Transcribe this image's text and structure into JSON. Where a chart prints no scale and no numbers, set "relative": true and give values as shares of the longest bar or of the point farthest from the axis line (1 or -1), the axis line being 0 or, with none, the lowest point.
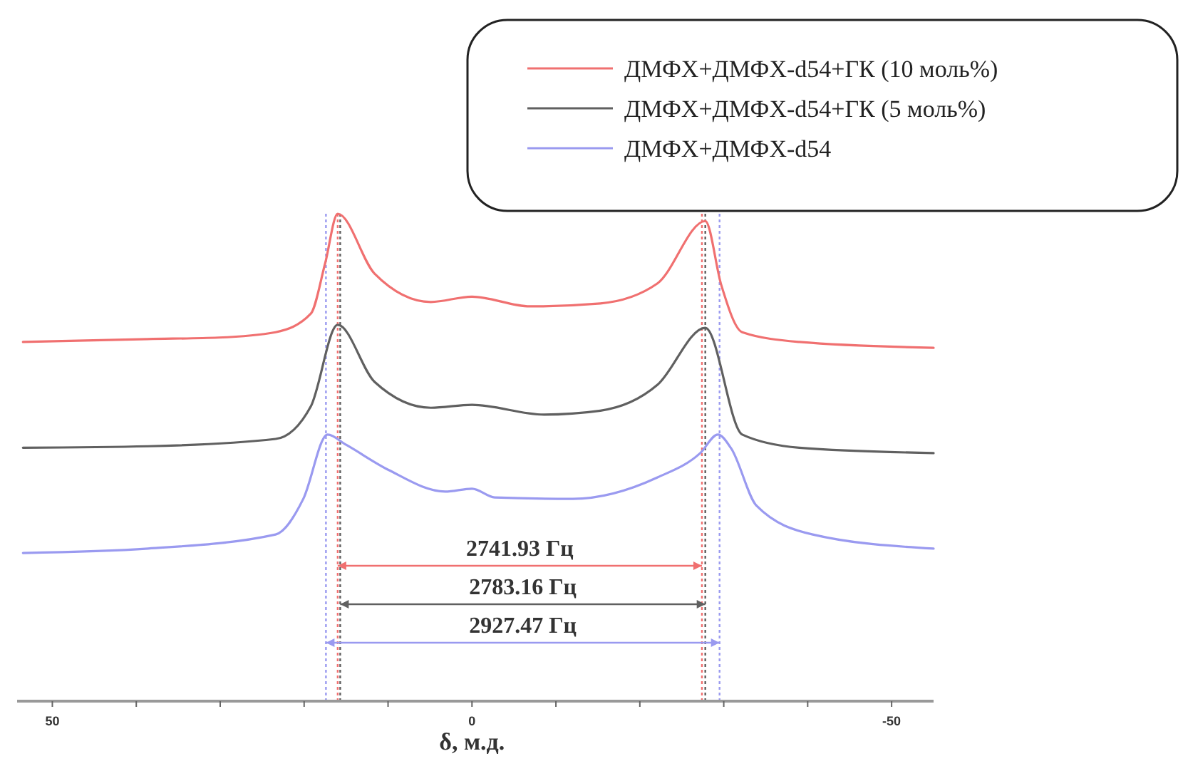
{
  "chart_data": {
    "type": "line",
    "relative": true,
    "xlabel": "δ, м.д.",
    "xlim": [
      54.2,
      -55
    ],
    "xticks": [
      50,
      {
        "value": 40,
        "label": null
      },
      {
        "value": 30,
        "label": null
      },
      {
        "value": 20,
        "label": null
      },
      {
        "value": 10,
        "label": null
      },
      0,
      {
        "value": -10,
        "label": null
      },
      {
        "value": -20,
        "label": null
      },
      {
        "value": -30,
        "label": null
      },
      {
        "value": -40,
        "label": null
      },
      -50
    ],
    "legend": "top right",
    "line_style": "solid",
    "x": [
      53.5,
      38.6,
      30.2,
      23.4,
      19.2,
      17.5,
      16.0,
      11.6,
      4.9,
      0,
      -6.9,
      -15.3,
      -22.1,
      -27.8,
      -29.7,
      -32.2,
      -39.0,
      -55
    ],
    "series": [
      {
        "name": "ДМФХ+ДМФХ-d54+ГК (10 моль%)",
        "color": "#f07070",
        "values": [
          0.737,
          0.743,
          0.746,
          0.757,
          0.795,
          0.898,
          1.0,
          0.877,
          0.819,
          0.83,
          0.81,
          0.816,
          0.857,
          0.985,
          0.854,
          0.757,
          0.737,
          0.725
        ]
      },
      {
        "name": "ДМФХ+ДМФХ-d54+ГК (5 моль%)",
        "color": "#606060",
        "x": [
          53.5,
          38.6,
          23.4,
          19.2,
          16.0,
          11.6,
          4.9,
          0,
          -8.6,
          -15.3,
          -22.1,
          -27.8,
          -32.2,
          -39.0,
          -55
        ],
        "values": [
          0.52,
          0.523,
          0.538,
          0.605,
          0.772,
          0.655,
          0.602,
          0.608,
          0.588,
          0.596,
          0.649,
          0.766,
          0.547,
          0.52,
          0.509
        ]
      },
      {
        "name": "ДМФХ+ДМФХ-d54",
        "color": "#9a9af0",
        "x": [
          53.5,
          38.6,
          23.4,
          20.1,
          17.2,
          15.0,
          9.9,
          3.2,
          0,
          -2.7,
          -12.0,
          -22.1,
          -27.2,
          -29.3,
          -30.9,
          -33.9,
          -40.6,
          -55
        ],
        "values": [
          0.304,
          0.313,
          0.342,
          0.415,
          0.547,
          0.526,
          0.474,
          0.43,
          0.436,
          0.418,
          0.415,
          0.459,
          0.509,
          0.547,
          0.518,
          0.401,
          0.342,
          0.313
        ]
      }
    ],
    "ref_lines": [
      {
        "axis": "x",
        "value": 16.0,
        "color": "#f07070",
        "line_style": "dotted"
      },
      {
        "axis": "x",
        "value": -27.4,
        "color": "#f07070",
        "line_style": "dotted"
      },
      {
        "axis": "x",
        "value": 15.7,
        "color": "#606060",
        "line_style": "dotted"
      },
      {
        "axis": "x",
        "value": -27.8,
        "color": "#606060",
        "line_style": "dotted"
      },
      {
        "axis": "x",
        "value": 17.4,
        "color": "#9a9af0",
        "line_style": "dotted"
      },
      {
        "axis": "x",
        "value": -29.5,
        "color": "#9a9af0",
        "line_style": "dotted"
      }
    ],
    "annotations": [
      "2741.93 Гц",
      "2783.16 Гц",
      "2927.47 Гц"
    ]
  }
}
